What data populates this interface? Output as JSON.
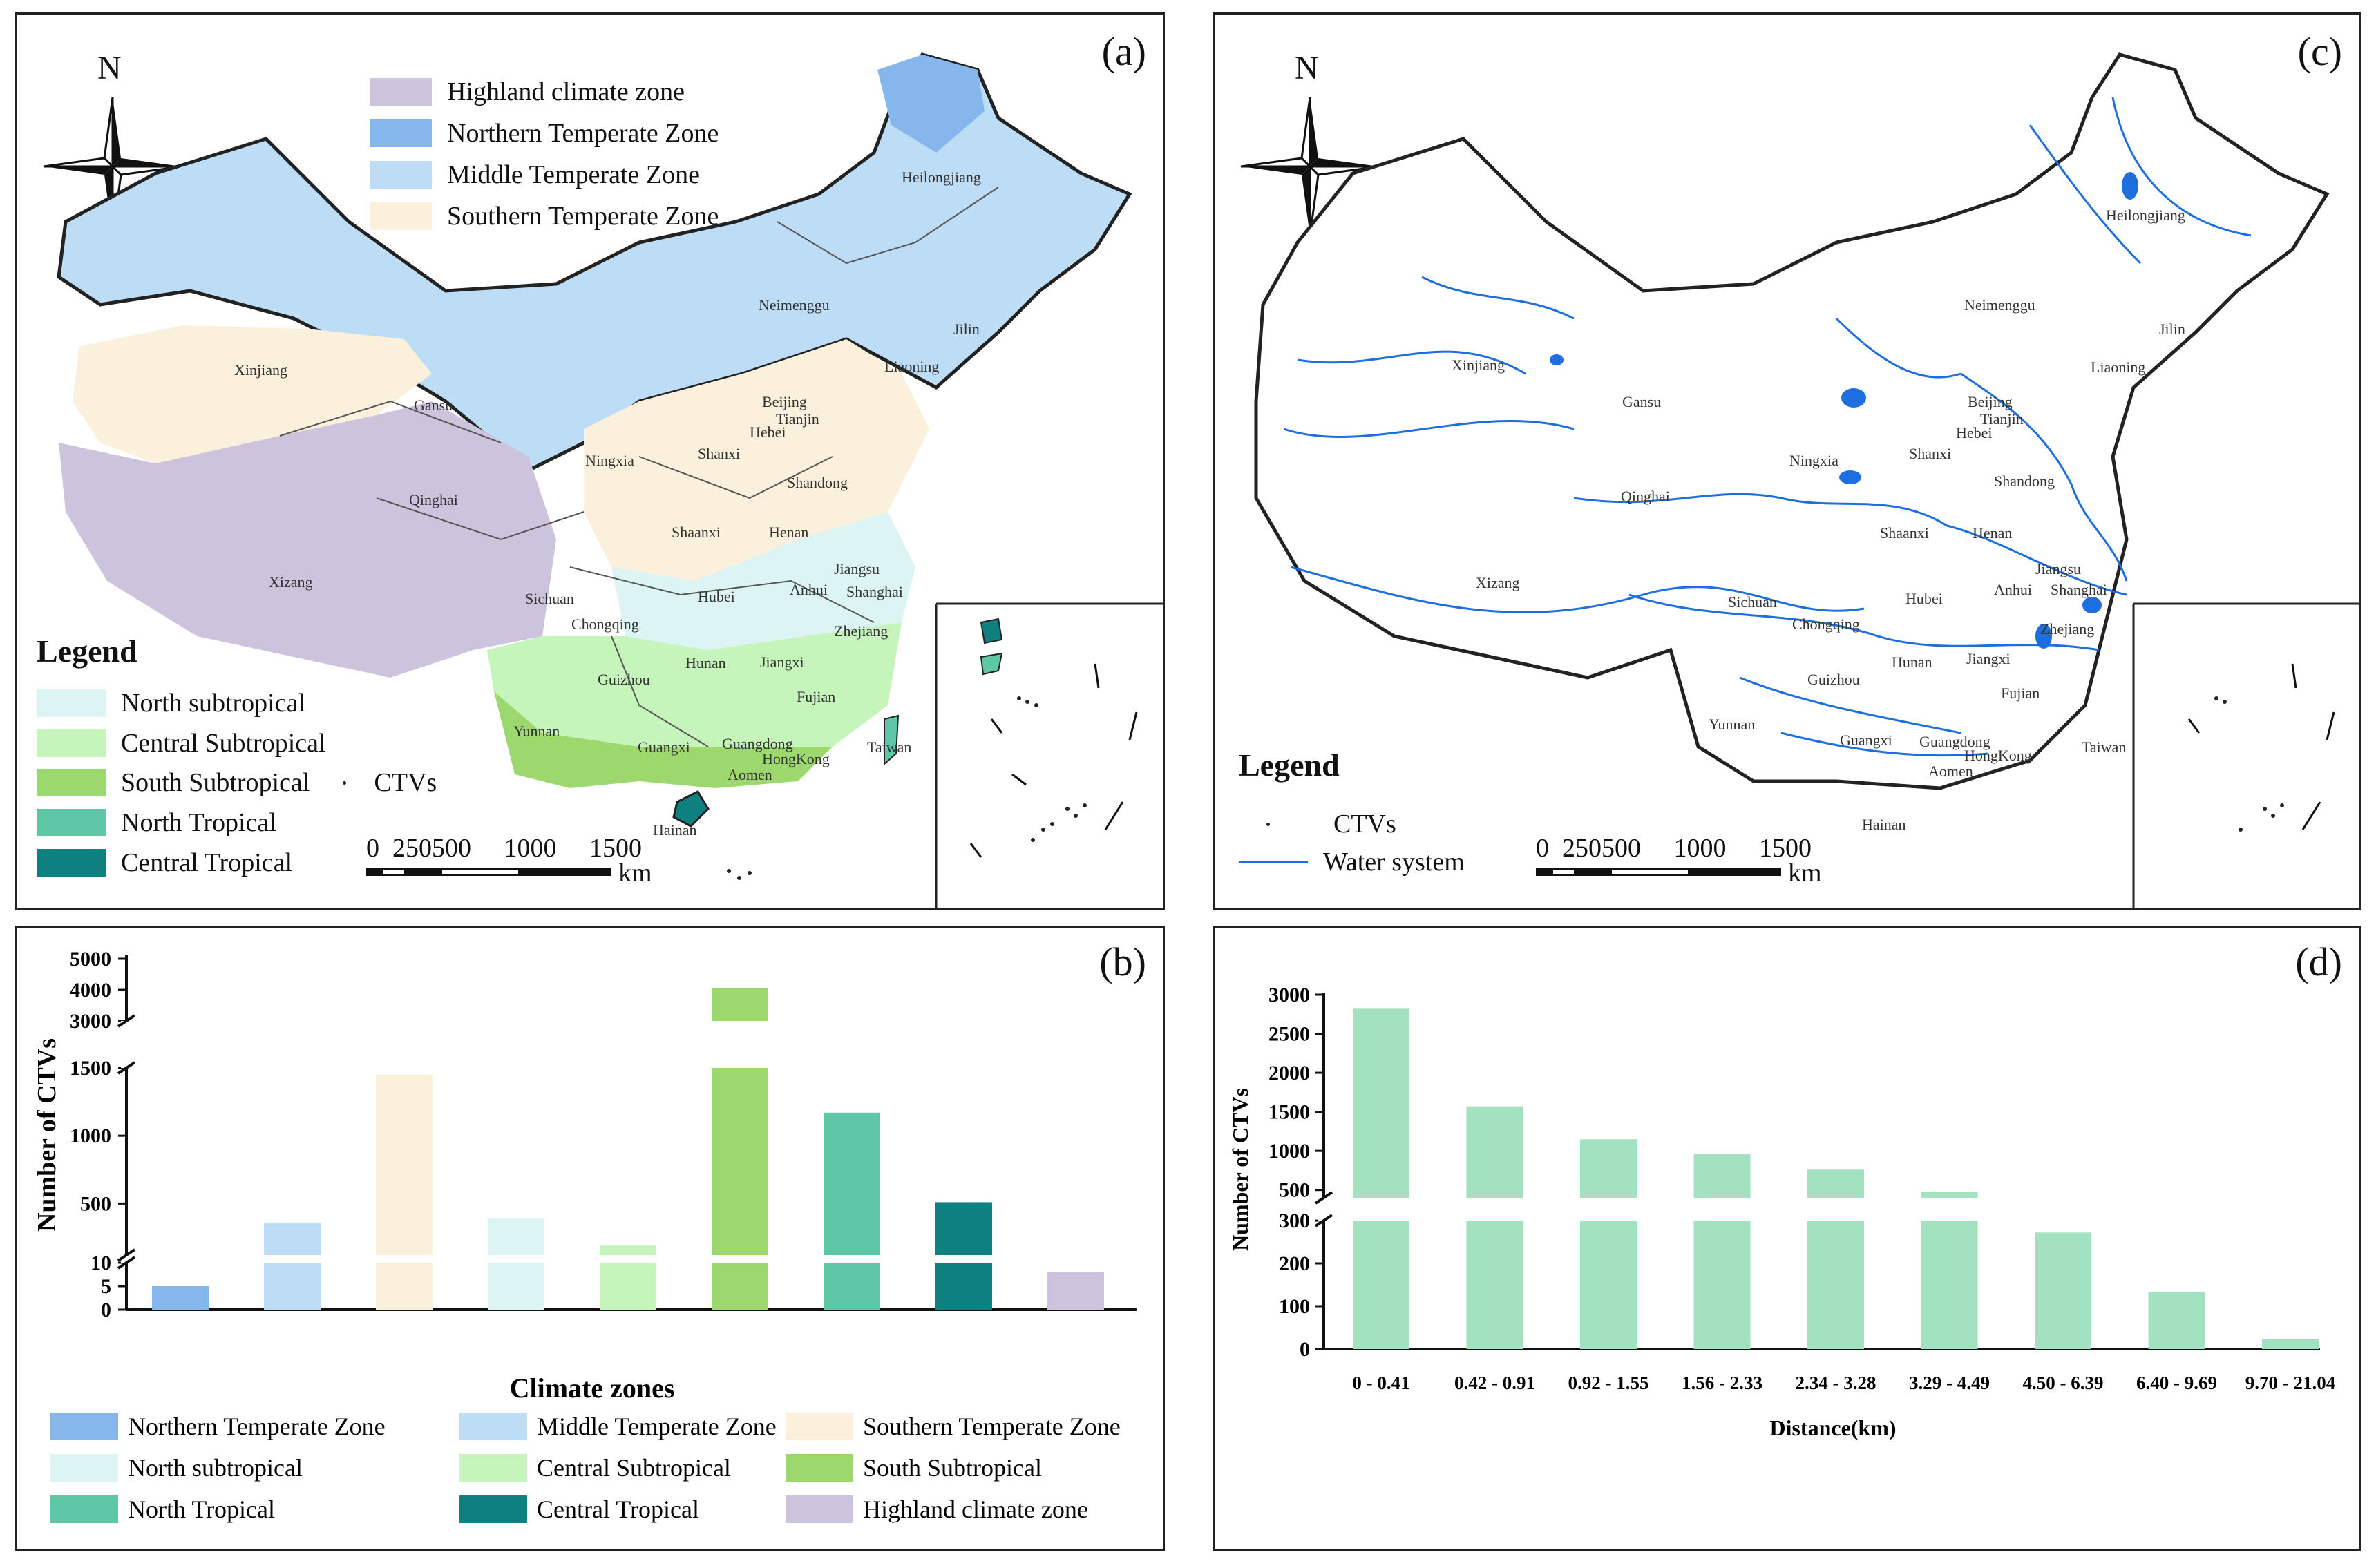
{
  "panels": {
    "a": {
      "label": "(a)",
      "north": "N",
      "top_legend": [
        {
          "label": "Highland climate zone",
          "color": "#cbc4dc"
        },
        {
          "label": "Northern Temperate Zone",
          "color": "#86b7ec"
        },
        {
          "label": "Middle Temperate Zone",
          "color": "#bddcf5"
        },
        {
          "label": "Southern Temperate Zone",
          "color": "#fbf0dc"
        }
      ],
      "legend_title": "Legend",
      "bottom_legend": [
        {
          "label": "North subtropical",
          "color": "#dcf4f4"
        },
        {
          "label": "Central Subtropical",
          "color": "#c6f5bc"
        },
        {
          "label": "South Subtropical",
          "color": "#9dd86e"
        },
        {
          "label": "North Tropical",
          "color": "#5ec8a6"
        },
        {
          "label": "Central Tropical",
          "color": "#0e8080"
        }
      ],
      "ctv_label": "CTVs",
      "scale_numbers": "0  250500     1000     1500",
      "scale_unit": "km",
      "provinces": [
        "Heilongjiang",
        "Jilin",
        "Liaoning",
        "Neimenggu",
        "Xinjiang",
        "Gansu",
        "Qinghai",
        "Xizang",
        "Ningxia",
        "Shaanxi",
        "Shanxi",
        "Hebei",
        "Beijing",
        "Tianjin",
        "Shandong",
        "Henan",
        "Hubei",
        "Anhui",
        "Jiangsu",
        "Shanghai",
        "Zhejiang",
        "Sichuan",
        "Chongqing",
        "Guizhou",
        "Hunan",
        "Jiangxi",
        "Fujian",
        "Yunnan",
        "Guangxi",
        "Guangdong",
        "HongKong",
        "Aomen",
        "Taiwan",
        "Hainan"
      ]
    },
    "c": {
      "label": "(c)",
      "north": "N",
      "legend_title": "Legend",
      "legend": [
        {
          "label": "CTVs",
          "symbol": "dot"
        },
        {
          "label": "Water system",
          "symbol": "line",
          "color": "#1d6fe0"
        }
      ],
      "scale_numbers": "0  250500     1000     1500",
      "scale_unit": "km",
      "provinces": [
        "Heilongjiang",
        "Jilin",
        "Liaoning",
        "Neimenggu",
        "Xinjiang",
        "Gansu",
        "Qinghai",
        "Xizang",
        "Ningxia",
        "Shaanxi",
        "Shanxi",
        "Hebei",
        "Beijing",
        "Tianjin",
        "Shandong",
        "Henan",
        "Hubei",
        "Anhui",
        "Jiangsu",
        "Shanghai",
        "Zhejiang",
        "Sichuan",
        "Chongqing",
        "Guizhou",
        "Hunan",
        "Jiangxi",
        "Fujian",
        "Yunnan",
        "Guangxi",
        "Guangdong",
        "HongKong",
        "Aomen",
        "Taiwan",
        "Hainan"
      ]
    },
    "b": {
      "label": "(b)"
    },
    "d": {
      "label": "(d)"
    }
  },
  "chart_data": [
    {
      "id": "b",
      "type": "bar",
      "title": "",
      "xlabel": "Climate zones",
      "ylabel": "Number of CTVs",
      "axis_breaks": [
        [
          10,
          120
        ],
        [
          1500,
          3000
        ]
      ],
      "yticks": [
        0,
        5,
        10,
        500,
        1000,
        1500,
        3000,
        4000,
        5000
      ],
      "categories": [
        "Northern Temperate Zone",
        "Middle Temperate Zone",
        "Southern Temperate Zone",
        "North subtropical",
        "Central Subtropical",
        "South Subtropical",
        "North Tropical",
        "Central Tropical",
        "Highland climate zone"
      ],
      "values": [
        5,
        360,
        1450,
        390,
        190,
        4050,
        1170,
        510,
        8
      ],
      "colors": [
        "#86b7ec",
        "#bddcf5",
        "#fbf0dc",
        "#dcf4f4",
        "#c6f5bc",
        "#9dd86e",
        "#5ec8a6",
        "#0e8080",
        "#cbc4dc"
      ],
      "legend": [
        "Northern Temperate Zone",
        "North subtropical",
        "North Tropical",
        "Middle Temperate Zone",
        "Central Subtropical",
        "Central Tropical",
        "Southern Temperate Zone",
        "South Subtropical",
        "Highland climate zone"
      ]
    },
    {
      "id": "d",
      "type": "bar",
      "title": "",
      "xlabel": "Distance(km)",
      "ylabel": "Number of CTVs",
      "axis_breaks": [
        [
          300,
          400
        ]
      ],
      "yticks": [
        0,
        100,
        200,
        300,
        500,
        1000,
        1500,
        2000,
        2500,
        3000
      ],
      "categories": [
        "0 - 0.41",
        "0.42 - 0.91",
        "0.92 - 1.55",
        "1.56 - 2.33",
        "2.34 - 3.28",
        "3.29 - 4.49",
        "4.50 - 6.39",
        "6.40 - 9.69",
        "9.70 - 21.04"
      ],
      "values": [
        2820,
        1570,
        1150,
        960,
        760,
        480,
        272,
        133,
        23
      ],
      "color": "#a3e2c0"
    }
  ]
}
